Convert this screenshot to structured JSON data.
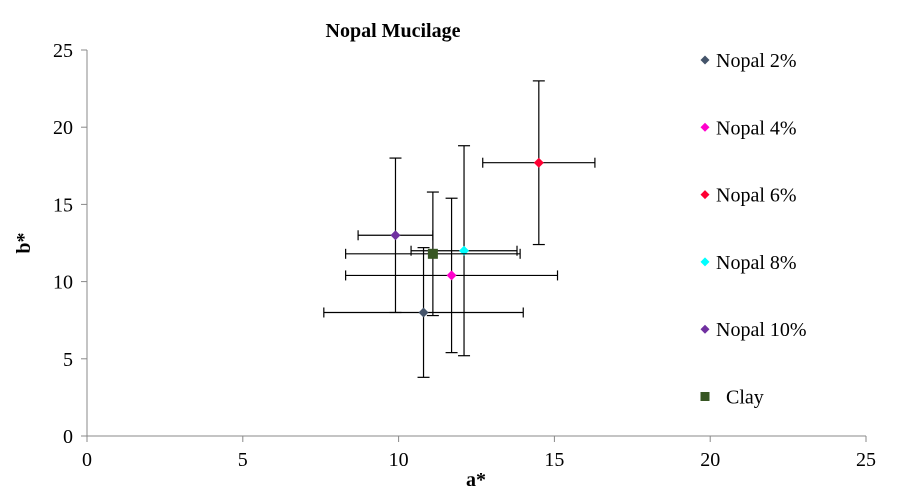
{
  "chart_data": {
    "type": "scatter",
    "title": "Nopal Mucilage",
    "xlabel": "a*",
    "ylabel": "b*",
    "xlim": [
      0,
      25
    ],
    "ylim": [
      0,
      25
    ],
    "xticks": [
      "0",
      "5",
      "10",
      "15",
      "20",
      "25"
    ],
    "yticks": [
      "0",
      "5",
      "10",
      "15",
      "20",
      "25"
    ],
    "grid": false,
    "legend_position": "right",
    "series": [
      {
        "name": "Nopal 2%",
        "color": "#44546A",
        "marker": "diamond",
        "x": 10.8,
        "y": 8.0,
        "xerr": 3.2,
        "yerr": 4.2
      },
      {
        "name": "Nopal 4%",
        "color": "#FF00CC",
        "marker": "diamond",
        "x": 11.7,
        "y": 10.4,
        "xerr": 3.4,
        "yerr": 5.0
      },
      {
        "name": "Nopal 6%",
        "color": "#FF0033",
        "marker": "diamond",
        "x": 14.5,
        "y": 17.7,
        "xerr": 1.8,
        "yerr": 5.3
      },
      {
        "name": "Nopal 8%",
        "color": "#00FFFF",
        "marker": "diamond",
        "x": 12.1,
        "y": 12.0,
        "xerr": 1.7,
        "yerr": 6.8
      },
      {
        "name": "Nopal 10%",
        "color": "#7030A0",
        "marker": "diamond",
        "x": 9.9,
        "y": 13.0,
        "xerr": 1.2,
        "yerr": 5.0
      },
      {
        "name": "Clay",
        "color": "#375623",
        "marker": "square",
        "x": 11.1,
        "y": 11.8,
        "xerr": 2.8,
        "yerr": 4.0
      }
    ]
  }
}
